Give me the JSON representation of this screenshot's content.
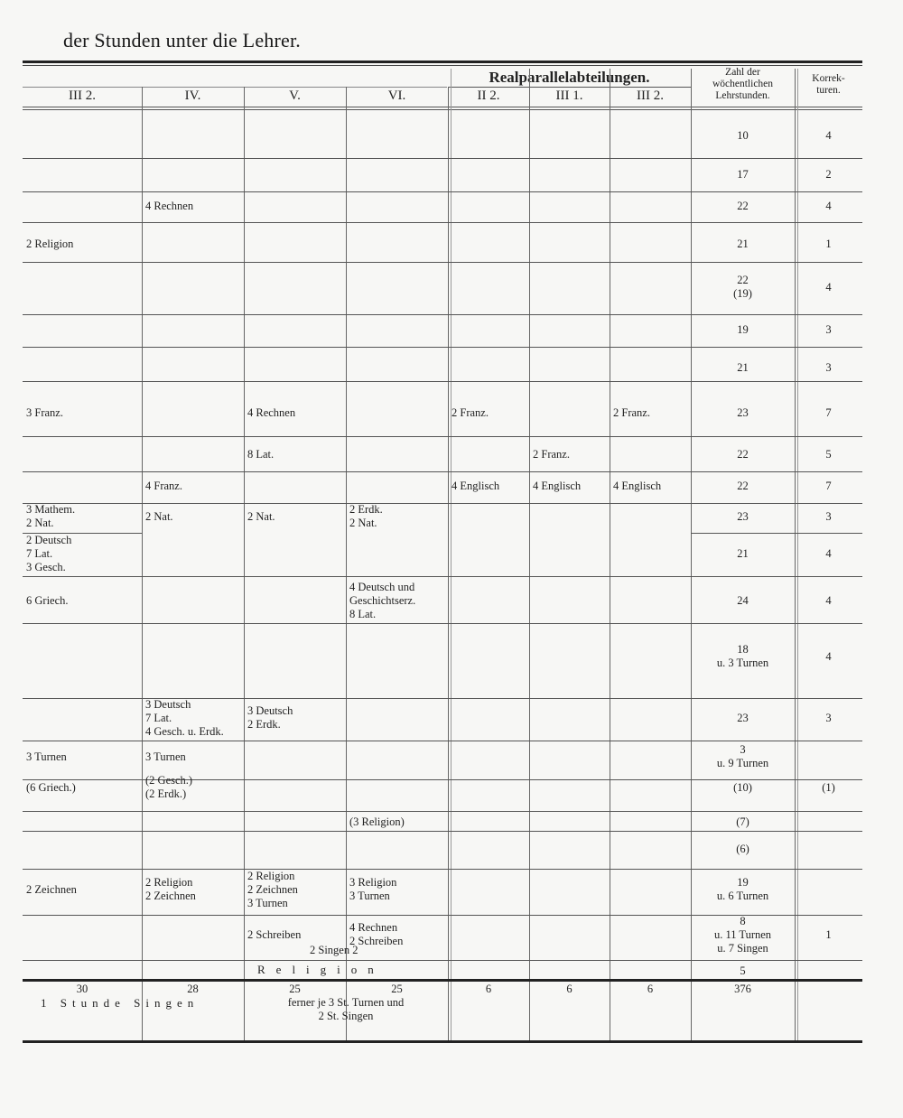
{
  "title": "der Stunden unter die Lehrer.",
  "header": {
    "group_label": "Realparallelabteilungen.",
    "columns": [
      "III 2.",
      "IV.",
      "V.",
      "VI.",
      "II 2.",
      "III 1.",
      "III 2."
    ],
    "hours_label": [
      "Zahl der",
      "wöchentlichen",
      "Lehrstunden."
    ],
    "corrections_label": [
      "Korrek-",
      "turen."
    ]
  },
  "rows": [
    {
      "cells": {
        "hours": [
          "10"
        ],
        "korr": [
          "4"
        ]
      }
    },
    {
      "cells": {
        "hours": [
          "17"
        ],
        "korr": [
          "2"
        ]
      }
    },
    {
      "cells": {
        "c1": [
          "4 Rechnen"
        ],
        "hours": [
          "22"
        ],
        "korr": [
          "4"
        ]
      }
    },
    {
      "cells": {
        "c0": [
          "2 Religion"
        ],
        "hours": [
          "21"
        ],
        "korr": [
          "1"
        ]
      }
    },
    {
      "cells": {
        "hours": [
          "22",
          "(19)"
        ],
        "korr": [
          "4"
        ]
      }
    },
    {
      "cells": {
        "hours": [
          "19"
        ],
        "korr": [
          "3"
        ]
      }
    },
    {
      "cells": {
        "hours": [
          "21"
        ],
        "korr": [
          "3"
        ]
      }
    },
    {
      "cells": {
        "c0": [
          "3 Franz."
        ],
        "c2": [
          "4 Rechnen"
        ],
        "c4": [
          "2 Franz."
        ],
        "c6": [
          "2 Franz."
        ],
        "hours": [
          "23"
        ],
        "korr": [
          "7"
        ]
      }
    },
    {
      "cells": {
        "c2": [
          "8 Lat."
        ],
        "c5": [
          "2 Franz."
        ],
        "hours": [
          "22"
        ],
        "korr": [
          "5"
        ]
      }
    },
    {
      "cells": {
        "c1": [
          "4 Franz."
        ],
        "c4": [
          "4 Englisch"
        ],
        "c5": [
          "4 Englisch"
        ],
        "c6": [
          "4 Englisch"
        ],
        "hours": [
          "22"
        ],
        "korr": [
          "7"
        ]
      }
    },
    {
      "cells": {
        "c0": [
          "3 Mathem.",
          "2 Nat."
        ],
        "c1": [
          "2 Nat."
        ],
        "c2": [
          "2 Nat."
        ],
        "c3": [
          "2 Erdk.",
          "2 Nat."
        ],
        "hours": [
          "23"
        ],
        "korr": [
          "3"
        ]
      }
    },
    {
      "cells": {
        "c0": [
          "2 Deutsch",
          "7 Lat.",
          "3 Gesch."
        ],
        "hours": [
          "21"
        ],
        "korr": [
          "4"
        ]
      }
    },
    {
      "cells": {
        "c0": [
          "6 Griech."
        ],
        "c3": [
          "4 Deutsch und",
          "Geschichtserz.",
          "8 Lat."
        ],
        "hours": [
          "24"
        ],
        "korr": [
          "4"
        ]
      }
    },
    {
      "cells": {
        "hours": [
          "18",
          "u. 3 Turnen"
        ],
        "korr": [
          "4"
        ]
      }
    },
    {
      "cells": {
        "c1": [
          "3 Deutsch",
          "7 Lat.",
          "4 Gesch. u. Erdk."
        ],
        "c2": [
          "3 Deutsch",
          "2 Erdk."
        ],
        "hours": [
          "23"
        ],
        "korr": [
          "3"
        ]
      }
    },
    {
      "cells": {
        "c0": [
          "3 Turnen"
        ],
        "c1": [
          "3 Turnen"
        ],
        "hours": [
          "3",
          "u. 9 Turnen"
        ]
      }
    },
    {
      "cells": {
        "c0": [
          "(6 Griech.)"
        ],
        "c1": [
          "(2 Gesch.)",
          "(2 Erdk.)"
        ],
        "hours": [
          "(10)"
        ],
        "korr": [
          "(1)"
        ]
      }
    },
    {
      "cells": {
        "c3": [
          "(3 Religion)"
        ],
        "hours": [
          "(7)"
        ]
      }
    },
    {
      "cells": {
        "hours": [
          "(6)"
        ]
      }
    },
    {
      "cells": {
        "c0": [
          "2 Zeichnen"
        ],
        "c1": [
          "2 Religion",
          "2 Zeichnen"
        ],
        "c2": [
          "2 Religion",
          "2 Zeichnen",
          "3 Turnen"
        ],
        "c3": [
          "3 Religion",
          "3 Turnen"
        ],
        "hours": [
          "19",
          "u. 6 Turnen"
        ]
      }
    },
    {
      "cells": {
        "c2": [
          "2 Schreiben"
        ],
        "c3": [
          "4 Rechnen",
          "2 Schreiben"
        ],
        "hours": [
          "8",
          "u. 11 Turnen",
          "u. 7 Singen"
        ],
        "korr": [
          "1"
        ]
      }
    },
    {
      "cells": {
        "hours": [
          "5"
        ]
      }
    }
  ],
  "span_singen": "2 Singen 2",
  "span_religion": "Religion",
  "totals": [
    "30",
    "28",
    "25",
    "25",
    "6",
    "6",
    "6",
    "376"
  ],
  "footer": {
    "singen_note": "1 Stunde Singen",
    "turnen_note": [
      "ferner je 3 St. Turnen und",
      "2 St. Singen"
    ]
  }
}
